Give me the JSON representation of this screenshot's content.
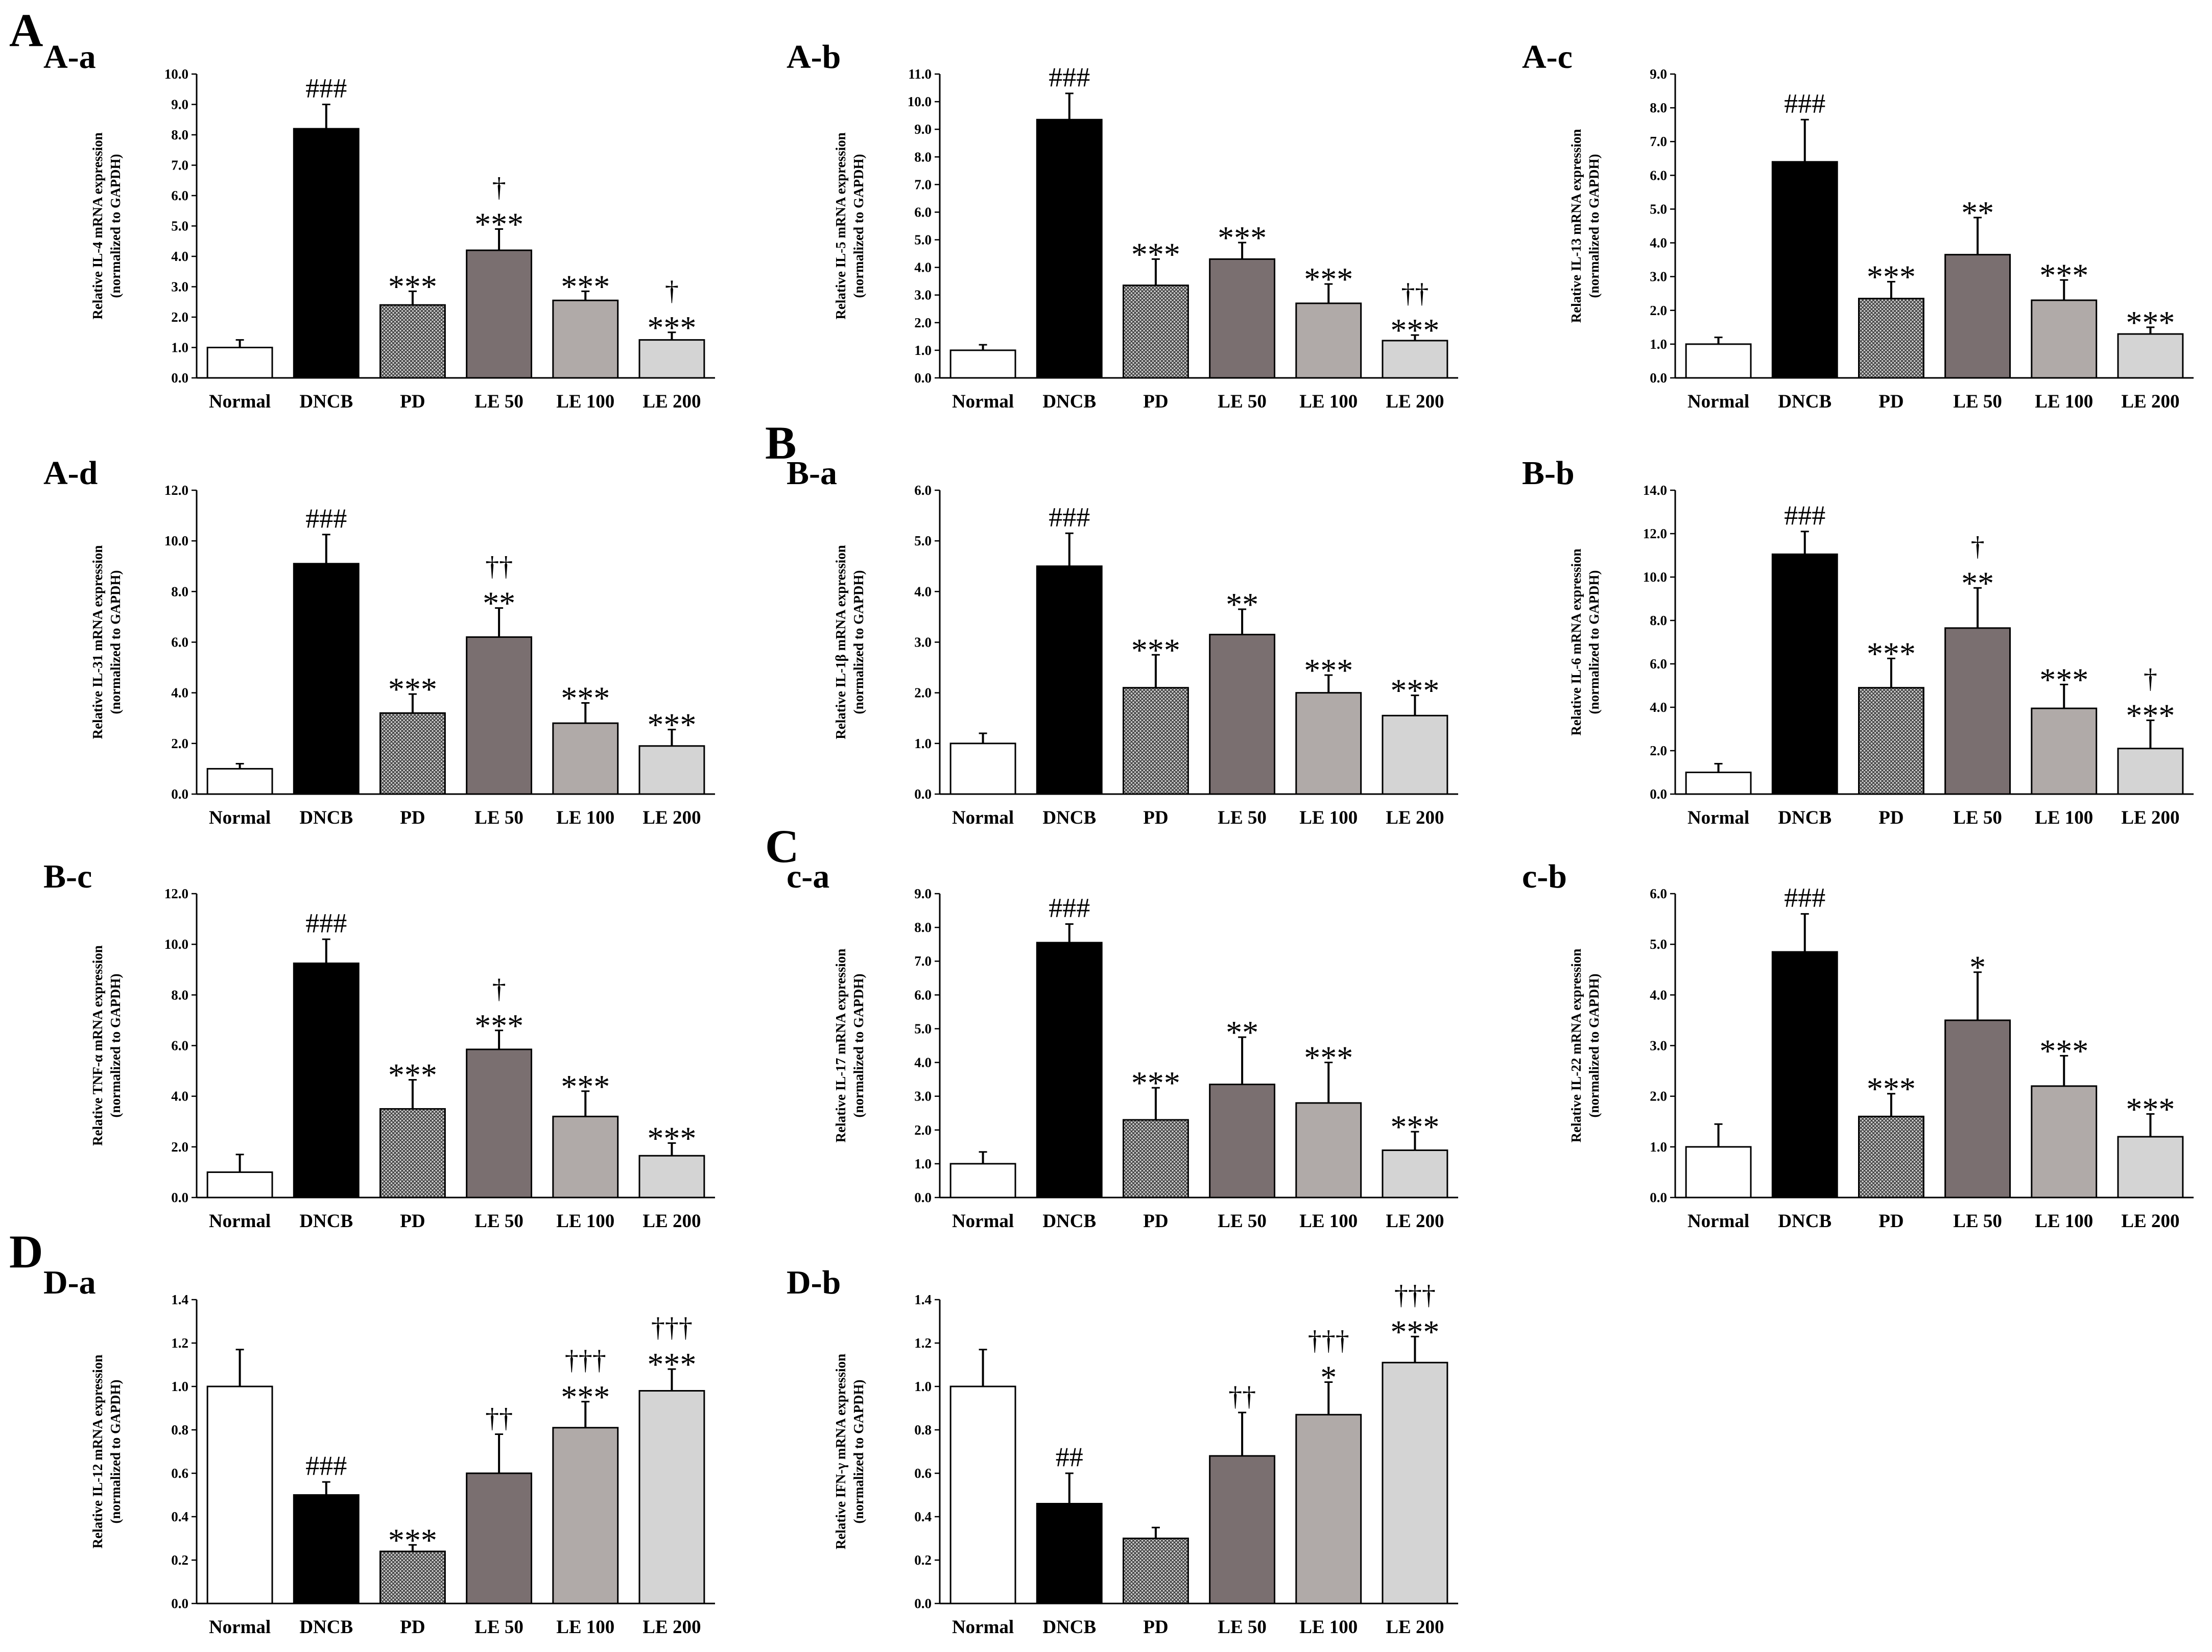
{
  "figure": {
    "section_labels": [
      {
        "id": "A",
        "text": "A"
      },
      {
        "id": "B",
        "text": "B"
      },
      {
        "id": "C",
        "text": "C"
      },
      {
        "id": "D",
        "text": "D"
      }
    ],
    "ylabel_line2": "(normalized to GAPDH)",
    "colors": {
      "Normal": "#ffffff",
      "DNCB": "#000000",
      "PD": "#9a9a9a",
      "LE 50": "#7a6f70",
      "LE 100": "#b0aaa8",
      "LE 200": "#d4d4d4",
      "axis": "#000000"
    }
  },
  "chart_data": [
    {
      "id": "A-a",
      "panel": "A-a",
      "type": "bar",
      "ylabel": "Relative  IL-4 mRNA expression",
      "categories": [
        "Normal",
        "DNCB",
        "PD",
        "LE 50",
        "LE 100",
        "LE 200"
      ],
      "ylim": [
        0,
        10
      ],
      "ticks": [
        "0.0",
        "1.0",
        "2.0",
        "3.0",
        "4.0",
        "5.0",
        "6.0",
        "7.0",
        "8.0",
        "9.0",
        "10.0"
      ],
      "values": [
        1.0,
        8.2,
        2.4,
        4.2,
        2.55,
        1.25
      ],
      "errors": [
        0.25,
        0.8,
        0.45,
        0.7,
        0.3,
        0.25
      ],
      "stars": [
        "",
        "",
        "***",
        "***",
        "***",
        "***"
      ],
      "hashes": [
        "",
        "###",
        "",
        "",
        "",
        ""
      ],
      "daggers": [
        "",
        "",
        "",
        "†",
        "",
        "†"
      ]
    },
    {
      "id": "A-b",
      "panel": "A-b",
      "type": "bar",
      "ylabel": "Relative  IL-5 mRNA expression",
      "categories": [
        "Normal",
        "DNCB",
        "PD",
        "LE 50",
        "LE 100",
        "LE 200"
      ],
      "ylim": [
        0,
        11
      ],
      "ticks": [
        "0.0",
        "1.0",
        "2.0",
        "3.0",
        "4.0",
        "5.0",
        "6.0",
        "7.0",
        "8.0",
        "9.0",
        "10.0",
        "11.0"
      ],
      "values": [
        1.0,
        9.35,
        3.35,
        4.3,
        2.7,
        1.35
      ],
      "errors": [
        0.2,
        0.95,
        0.95,
        0.6,
        0.7,
        0.2
      ],
      "stars": [
        "",
        "",
        "***",
        "***",
        "***",
        "***"
      ],
      "hashes": [
        "",
        "###",
        "",
        "",
        "",
        ""
      ],
      "daggers": [
        "",
        "",
        "",
        "",
        "",
        "††"
      ]
    },
    {
      "id": "A-c",
      "panel": "A-c",
      "type": "bar",
      "ylabel": "Relative  IL-13 mRNA expression",
      "categories": [
        "Normal",
        "DNCB",
        "PD",
        "LE 50",
        "LE 100",
        "LE 200"
      ],
      "ylim": [
        0,
        9
      ],
      "ticks": [
        "0.0",
        "1.0",
        "2.0",
        "3.0",
        "4.0",
        "5.0",
        "6.0",
        "7.0",
        "8.0",
        "9.0"
      ],
      "values": [
        1.0,
        6.4,
        2.35,
        3.65,
        2.3,
        1.3
      ],
      "errors": [
        0.2,
        1.25,
        0.5,
        1.1,
        0.6,
        0.2
      ],
      "stars": [
        "",
        "",
        "***",
        "**",
        "***",
        "***"
      ],
      "hashes": [
        "",
        "###",
        "",
        "",
        "",
        ""
      ],
      "daggers": [
        "",
        "",
        "",
        "",
        "",
        ""
      ]
    },
    {
      "id": "A-d",
      "panel": "A-d",
      "type": "bar",
      "ylabel": "Relative  IL-31 mRNA expression",
      "categories": [
        "Normal",
        "DNCB",
        "PD",
        "LE 50",
        "LE 100",
        "LE 200"
      ],
      "ylim": [
        0,
        12
      ],
      "ticks": [
        "0.0",
        "2.0",
        "4.0",
        "6.0",
        "8.0",
        "10.0",
        "12.0"
      ],
      "values": [
        1.0,
        9.1,
        3.2,
        6.2,
        2.8,
        1.9
      ],
      "errors": [
        0.2,
        1.15,
        0.75,
        1.15,
        0.8,
        0.65
      ],
      "stars": [
        "",
        "",
        "***",
        "**",
        "***",
        "***"
      ],
      "hashes": [
        "",
        "###",
        "",
        "",
        "",
        ""
      ],
      "daggers": [
        "",
        "",
        "",
        "††",
        "",
        ""
      ]
    },
    {
      "id": "B-a",
      "panel": "B-a",
      "type": "bar",
      "ylabel": "Relative  IL-1β mRNA expression",
      "categories": [
        "Normal",
        "DNCB",
        "PD",
        "LE 50",
        "LE 100",
        "LE 200"
      ],
      "ylim": [
        0,
        6
      ],
      "ticks": [
        "0.0",
        "1.0",
        "2.0",
        "3.0",
        "4.0",
        "5.0",
        "6.0"
      ],
      "values": [
        1.0,
        4.5,
        2.1,
        3.15,
        2.0,
        1.55
      ],
      "errors": [
        0.2,
        0.65,
        0.65,
        0.5,
        0.35,
        0.4
      ],
      "stars": [
        "",
        "",
        "***",
        "**",
        "***",
        "***"
      ],
      "hashes": [
        "",
        "###",
        "",
        "",
        "",
        ""
      ],
      "daggers": [
        "",
        "",
        "",
        "",
        "",
        ""
      ]
    },
    {
      "id": "B-b",
      "panel": "B-b",
      "type": "bar",
      "ylabel": "Relative  IL-6 mRNA expression",
      "categories": [
        "Normal",
        "DNCB",
        "PD",
        "LE 50",
        "LE 100",
        "LE 200"
      ],
      "ylim": [
        0,
        14
      ],
      "ticks": [
        "0.0",
        "2.0",
        "4.0",
        "6.0",
        "8.0",
        "10.0",
        "12.0",
        "14.0"
      ],
      "values": [
        1.0,
        11.05,
        4.9,
        7.65,
        3.95,
        2.1
      ],
      "errors": [
        0.4,
        1.05,
        1.35,
        1.85,
        1.1,
        1.3
      ],
      "stars": [
        "",
        "",
        "***",
        "**",
        "***",
        "***"
      ],
      "hashes": [
        "",
        "###",
        "",
        "",
        "",
        ""
      ],
      "daggers": [
        "",
        "",
        "",
        "†",
        "",
        "†"
      ]
    },
    {
      "id": "B-c",
      "panel": "B-c",
      "type": "bar",
      "ylabel": "Relative  TNF-α mRNA expression",
      "categories": [
        "Normal",
        "DNCB",
        "PD",
        "LE 50",
        "LE 100",
        "LE 200"
      ],
      "ylim": [
        0,
        12
      ],
      "ticks": [
        "0.0",
        "2.0",
        "4.0",
        "6.0",
        "8.0",
        "10.0",
        "12.0"
      ],
      "values": [
        1.0,
        9.25,
        3.5,
        5.85,
        3.2,
        1.65
      ],
      "errors": [
        0.7,
        0.95,
        1.15,
        0.75,
        1.0,
        0.5
      ],
      "stars": [
        "",
        "",
        "***",
        "***",
        "***",
        "***"
      ],
      "hashes": [
        "",
        "###",
        "",
        "",
        "",
        ""
      ],
      "daggers": [
        "",
        "",
        "",
        "†",
        "",
        ""
      ]
    },
    {
      "id": "c-a",
      "panel": "c-a",
      "type": "bar",
      "ylabel": "Relative  IL-17 mRNA expression",
      "categories": [
        "Normal",
        "DNCB",
        "PD",
        "LE 50",
        "LE 100",
        "LE 200"
      ],
      "ylim": [
        0,
        9
      ],
      "ticks": [
        "0.0",
        "1.0",
        "2.0",
        "3.0",
        "4.0",
        "5.0",
        "6.0",
        "7.0",
        "8.0",
        "9.0"
      ],
      "values": [
        1.0,
        7.55,
        2.3,
        3.35,
        2.8,
        1.4
      ],
      "errors": [
        0.35,
        0.55,
        0.95,
        1.4,
        1.2,
        0.55
      ],
      "stars": [
        "",
        "",
        "***",
        "**",
        "***",
        "***"
      ],
      "hashes": [
        "",
        "###",
        "",
        "",
        "",
        ""
      ],
      "daggers": [
        "",
        "",
        "",
        "",
        "",
        ""
      ]
    },
    {
      "id": "c-b",
      "panel": "c-b",
      "type": "bar",
      "ylabel": "Relative  IL-22 mRNA expression",
      "categories": [
        "Normal",
        "DNCB",
        "PD",
        "LE 50",
        "LE 100",
        "LE 200"
      ],
      "ylim": [
        0,
        6
      ],
      "ticks": [
        "0.0",
        "1.0",
        "2.0",
        "3.0",
        "4.0",
        "5.0",
        "6.0"
      ],
      "values": [
        1.0,
        4.85,
        1.6,
        3.5,
        2.2,
        1.2
      ],
      "errors": [
        0.45,
        0.75,
        0.45,
        0.95,
        0.6,
        0.45
      ],
      "stars": [
        "",
        "",
        "***",
        "*",
        "***",
        "***"
      ],
      "hashes": [
        "",
        "###",
        "",
        "",
        "",
        ""
      ],
      "daggers": [
        "",
        "",
        "",
        "",
        "",
        ""
      ]
    },
    {
      "id": "D-a",
      "panel": "D-a",
      "type": "bar",
      "ylabel": "Relative  IL-12 mRNA expression",
      "categories": [
        "Normal",
        "DNCB",
        "PD",
        "LE 50",
        "LE 100",
        "LE 200"
      ],
      "ylim": [
        0,
        1.4
      ],
      "ticks": [
        "0.0",
        "0.2",
        "0.4",
        "0.6",
        "0.8",
        "1.0",
        "1.2",
        "1.4"
      ],
      "values": [
        1.0,
        0.5,
        0.24,
        0.6,
        0.81,
        0.98
      ],
      "errors": [
        0.17,
        0.06,
        0.03,
        0.18,
        0.12,
        0.1
      ],
      "stars": [
        "",
        "",
        "***",
        "",
        "***",
        "***"
      ],
      "hashes": [
        "",
        "###",
        "",
        "",
        "",
        ""
      ],
      "daggers": [
        "",
        "",
        "",
        "††",
        "†††",
        "†††"
      ]
    },
    {
      "id": "D-b",
      "panel": "D-b",
      "type": "bar",
      "ylabel": "Relative  IFN-γ mRNA expression",
      "categories": [
        "Normal",
        "DNCB",
        "PD",
        "LE 50",
        "LE 100",
        "LE 200"
      ],
      "ylim": [
        0,
        1.4
      ],
      "ticks": [
        "0.0",
        "0.2",
        "0.4",
        "0.6",
        "0.8",
        "1.0",
        "1.2",
        "1.4"
      ],
      "values": [
        1.0,
        0.46,
        0.3,
        0.68,
        0.87,
        1.11
      ],
      "errors": [
        0.17,
        0.14,
        0.05,
        0.2,
        0.15,
        0.12
      ],
      "stars": [
        "",
        "",
        "",
        "",
        "*",
        "***"
      ],
      "hashes": [
        "",
        "##",
        "",
        "",
        "",
        ""
      ],
      "daggers": [
        "",
        "",
        "",
        "††",
        "†††",
        "†††"
      ]
    }
  ]
}
